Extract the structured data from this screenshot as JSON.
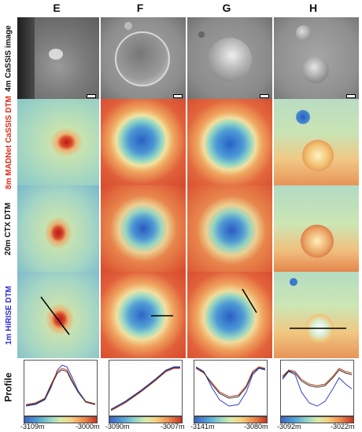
{
  "columns": [
    "E",
    "F",
    "G",
    "H"
  ],
  "row_labels": {
    "cassis": "4m CaSSIS image",
    "madnet": "8m MADNet CaSSIS DTM",
    "ctx": "20m CTX DTM",
    "hirise": "1m HiRISE DTM",
    "profile": "Profile"
  },
  "label_colors": {
    "cassis": "#111111",
    "madnet": "#e02a16",
    "ctx": "#111111",
    "hirise": "#2f2fd0",
    "profile": "#111111"
  },
  "colorbars": [
    {
      "min": "-3109m",
      "max": "-3000m"
    },
    {
      "min": "-3090m",
      "max": "-3007m"
    },
    {
      "min": "-3141m",
      "max": "-3080m"
    },
    {
      "min": "-3092m",
      "max": "-3022m"
    }
  ]
}
